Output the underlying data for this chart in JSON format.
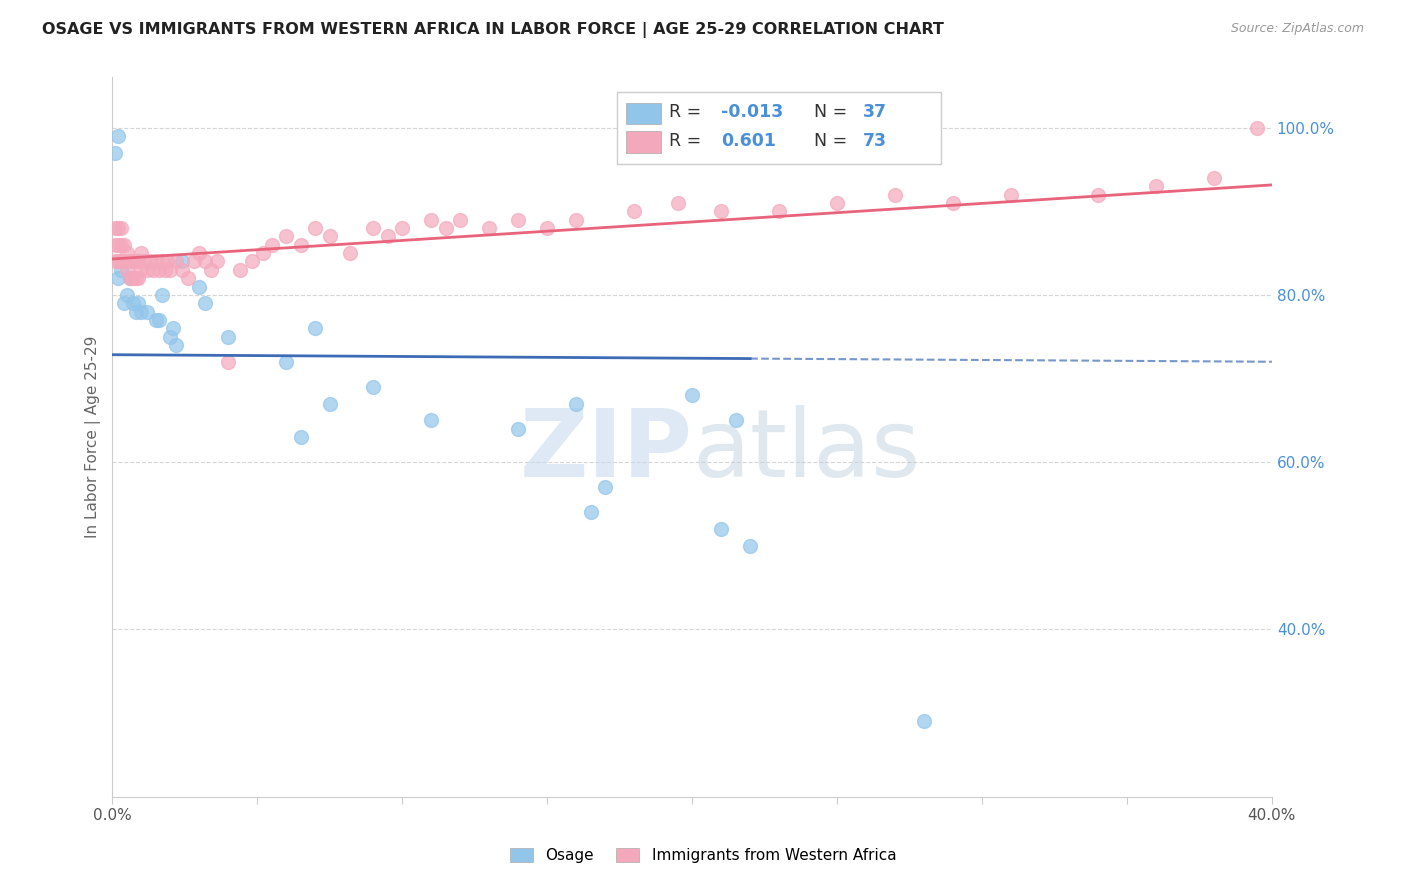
{
  "title": "OSAGE VS IMMIGRANTS FROM WESTERN AFRICA IN LABOR FORCE | AGE 25-29 CORRELATION CHART",
  "source": "Source: ZipAtlas.com",
  "ylabel": "In Labor Force | Age 25-29",
  "xlim": [
    0.0,
    0.4
  ],
  "ylim": [
    0.2,
    1.06
  ],
  "yticks_right": [
    0.4,
    0.6,
    0.8,
    1.0
  ],
  "ytick_labels_right": [
    "40.0%",
    "60.0%",
    "80.0%",
    "100.0%"
  ],
  "dotted_hline": 0.8,
  "blue_color": "#92C5EA",
  "pink_color": "#F4A8BC",
  "blue_line_color": "#3D6BB5",
  "pink_line_color": "#E8637C",
  "blue_R": -0.013,
  "blue_N": 37,
  "pink_R": 0.601,
  "pink_N": 73,
  "legend_blue_label": "Osage",
  "legend_pink_label": "Immigrants from Western Africa",
  "watermark_zip": "ZIP",
  "watermark_atlas": "atlas",
  "osage_x": [
    0.001,
    0.002,
    0.002,
    0.003,
    0.004,
    0.005,
    0.006,
    0.007,
    0.008,
    0.009,
    0.01,
    0.012,
    0.015,
    0.016,
    0.017,
    0.02,
    0.021,
    0.022,
    0.024,
    0.03,
    0.032,
    0.04,
    0.06,
    0.065,
    0.07,
    0.075,
    0.09,
    0.11,
    0.14,
    0.16,
    0.165,
    0.17,
    0.2,
    0.21,
    0.215,
    0.22,
    0.28
  ],
  "osage_y": [
    0.97,
    0.82,
    0.99,
    0.83,
    0.79,
    0.8,
    0.82,
    0.79,
    0.78,
    0.79,
    0.78,
    0.78,
    0.77,
    0.77,
    0.8,
    0.75,
    0.76,
    0.74,
    0.84,
    0.81,
    0.79,
    0.75,
    0.72,
    0.63,
    0.76,
    0.67,
    0.69,
    0.65,
    0.64,
    0.67,
    0.54,
    0.57,
    0.68,
    0.52,
    0.65,
    0.5,
    0.29
  ],
  "pink_x": [
    0.001,
    0.001,
    0.001,
    0.002,
    0.002,
    0.002,
    0.003,
    0.003,
    0.003,
    0.004,
    0.004,
    0.005,
    0.005,
    0.006,
    0.006,
    0.007,
    0.007,
    0.008,
    0.008,
    0.009,
    0.009,
    0.01,
    0.01,
    0.011,
    0.012,
    0.013,
    0.014,
    0.015,
    0.016,
    0.017,
    0.018,
    0.019,
    0.02,
    0.022,
    0.024,
    0.026,
    0.028,
    0.03,
    0.032,
    0.034,
    0.036,
    0.04,
    0.044,
    0.048,
    0.052,
    0.055,
    0.06,
    0.065,
    0.07,
    0.075,
    0.082,
    0.09,
    0.095,
    0.1,
    0.11,
    0.115,
    0.12,
    0.13,
    0.14,
    0.15,
    0.16,
    0.18,
    0.195,
    0.21,
    0.23,
    0.25,
    0.27,
    0.29,
    0.31,
    0.34,
    0.36,
    0.38,
    0.395
  ],
  "pink_y": [
    0.88,
    0.86,
    0.84,
    0.84,
    0.86,
    0.88,
    0.84,
    0.86,
    0.88,
    0.84,
    0.86,
    0.83,
    0.85,
    0.82,
    0.84,
    0.82,
    0.84,
    0.82,
    0.84,
    0.82,
    0.84,
    0.83,
    0.85,
    0.84,
    0.83,
    0.84,
    0.83,
    0.84,
    0.83,
    0.84,
    0.83,
    0.84,
    0.83,
    0.84,
    0.83,
    0.82,
    0.84,
    0.85,
    0.84,
    0.83,
    0.84,
    0.72,
    0.83,
    0.84,
    0.85,
    0.86,
    0.87,
    0.86,
    0.88,
    0.87,
    0.85,
    0.88,
    0.87,
    0.88,
    0.89,
    0.88,
    0.89,
    0.88,
    0.89,
    0.88,
    0.89,
    0.9,
    0.91,
    0.9,
    0.9,
    0.91,
    0.92,
    0.91,
    0.92,
    0.92,
    0.93,
    0.94,
    1.0
  ]
}
